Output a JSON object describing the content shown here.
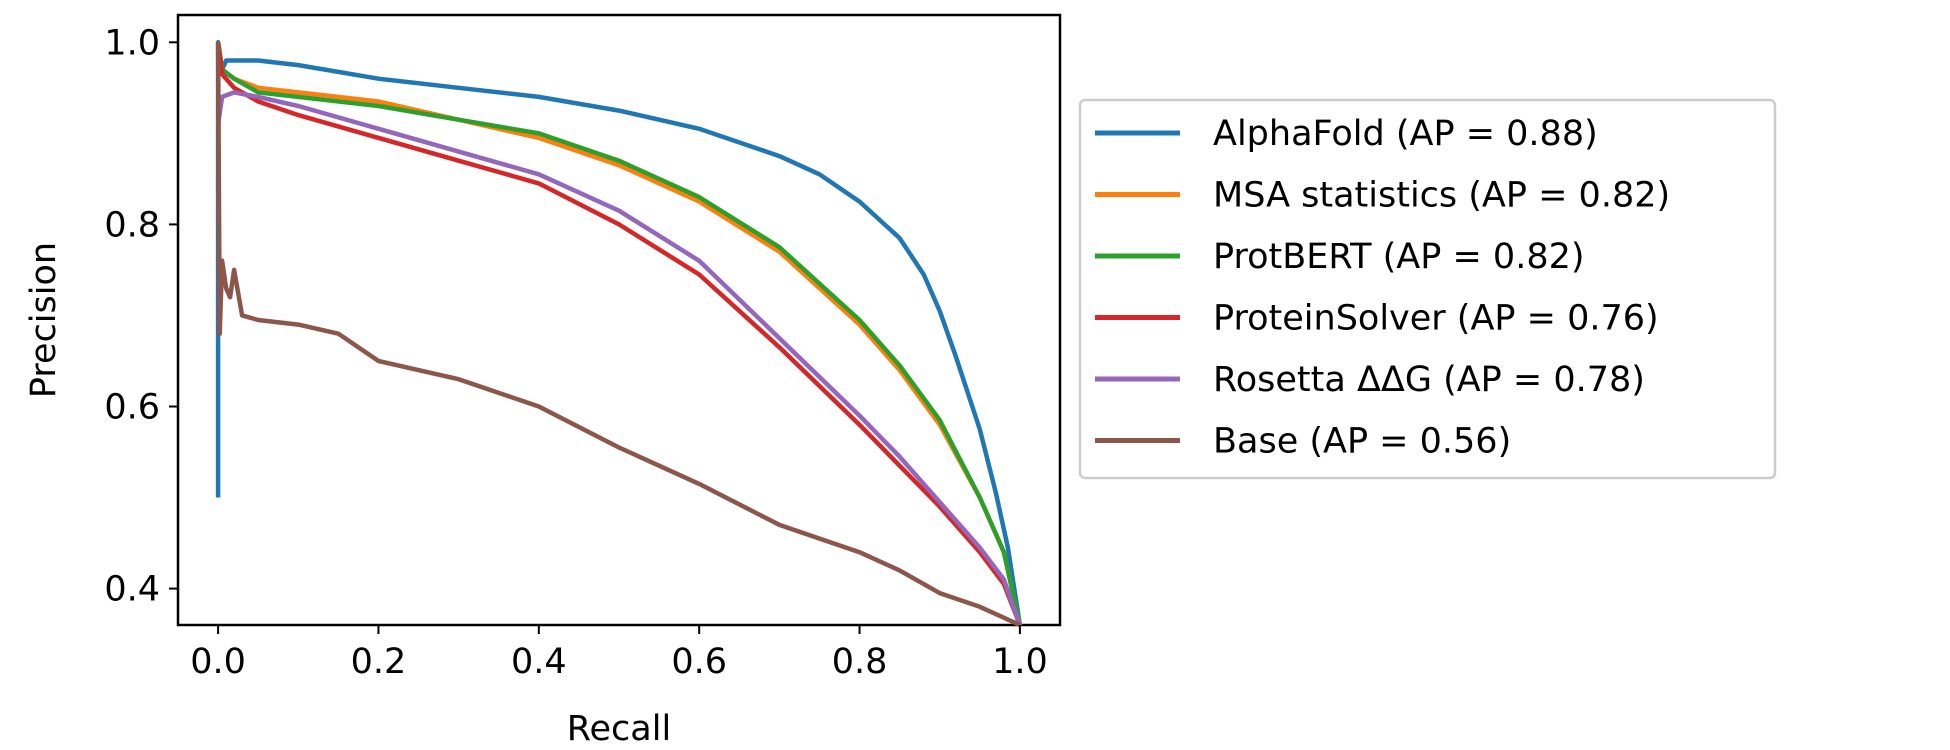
{
  "chart_data": {
    "type": "line",
    "title": "",
    "xlabel": "Recall",
    "ylabel": "Precision",
    "xlim": [
      -0.05,
      1.05
    ],
    "ylim": [
      0.36,
      1.03
    ],
    "x_ticks": [
      0.0,
      0.2,
      0.4,
      0.6,
      0.8,
      1.0
    ],
    "x_tick_labels": [
      "0.0",
      "0.2",
      "0.4",
      "0.6",
      "0.8",
      "1.0"
    ],
    "y_ticks": [
      0.4,
      0.6,
      0.8,
      1.0
    ],
    "y_tick_labels": [
      "0.4",
      "0.6",
      "0.8",
      "1.0"
    ],
    "grid": false,
    "legend_position": "outside-right",
    "series": [
      {
        "name": "AlphaFold (AP = 0.88)",
        "color": "#1f77b4",
        "points": [
          [
            0.0,
            0.5
          ],
          [
            0.0,
            1.0
          ],
          [
            0.005,
            0.97
          ],
          [
            0.01,
            0.98
          ],
          [
            0.02,
            0.98
          ],
          [
            0.05,
            0.98
          ],
          [
            0.1,
            0.975
          ],
          [
            0.2,
            0.96
          ],
          [
            0.3,
            0.95
          ],
          [
            0.4,
            0.94
          ],
          [
            0.5,
            0.925
          ],
          [
            0.6,
            0.905
          ],
          [
            0.7,
            0.875
          ],
          [
            0.75,
            0.855
          ],
          [
            0.8,
            0.825
          ],
          [
            0.85,
            0.785
          ],
          [
            0.88,
            0.745
          ],
          [
            0.9,
            0.705
          ],
          [
            0.92,
            0.655
          ],
          [
            0.95,
            0.575
          ],
          [
            0.97,
            0.505
          ],
          [
            0.985,
            0.445
          ],
          [
            1.0,
            0.36
          ]
        ]
      },
      {
        "name": "MSA statistics (AP = 0.82)",
        "color": "#ff7f0e",
        "points": [
          [
            0.0,
            1.0
          ],
          [
            0.005,
            0.97
          ],
          [
            0.02,
            0.96
          ],
          [
            0.05,
            0.95
          ],
          [
            0.1,
            0.945
          ],
          [
            0.2,
            0.935
          ],
          [
            0.3,
            0.915
          ],
          [
            0.4,
            0.895
          ],
          [
            0.5,
            0.865
          ],
          [
            0.6,
            0.825
          ],
          [
            0.7,
            0.77
          ],
          [
            0.8,
            0.69
          ],
          [
            0.85,
            0.64
          ],
          [
            0.9,
            0.58
          ],
          [
            0.95,
            0.5
          ],
          [
            0.98,
            0.44
          ],
          [
            1.0,
            0.36
          ]
        ]
      },
      {
        "name": "ProtBERT (AP = 0.82)",
        "color": "#2ca02c",
        "points": [
          [
            0.0,
            1.0
          ],
          [
            0.005,
            0.97
          ],
          [
            0.02,
            0.96
          ],
          [
            0.05,
            0.945
          ],
          [
            0.1,
            0.94
          ],
          [
            0.2,
            0.93
          ],
          [
            0.3,
            0.915
          ],
          [
            0.4,
            0.9
          ],
          [
            0.5,
            0.87
          ],
          [
            0.6,
            0.83
          ],
          [
            0.7,
            0.775
          ],
          [
            0.8,
            0.695
          ],
          [
            0.85,
            0.645
          ],
          [
            0.9,
            0.585
          ],
          [
            0.95,
            0.5
          ],
          [
            0.98,
            0.44
          ],
          [
            1.0,
            0.36
          ]
        ]
      },
      {
        "name": "ProteinSolver (AP = 0.76)",
        "color": "#d62728",
        "points": [
          [
            0.0,
            1.0
          ],
          [
            0.005,
            0.965
          ],
          [
            0.02,
            0.95
          ],
          [
            0.05,
            0.935
          ],
          [
            0.1,
            0.92
          ],
          [
            0.2,
            0.895
          ],
          [
            0.3,
            0.87
          ],
          [
            0.4,
            0.845
          ],
          [
            0.5,
            0.8
          ],
          [
            0.6,
            0.745
          ],
          [
            0.7,
            0.665
          ],
          [
            0.8,
            0.58
          ],
          [
            0.85,
            0.535
          ],
          [
            0.9,
            0.49
          ],
          [
            0.95,
            0.44
          ],
          [
            0.98,
            0.405
          ],
          [
            1.0,
            0.36
          ]
        ]
      },
      {
        "name": "Rosetta ΔΔG (AP = 0.78)",
        "color": "#9467bd",
        "points": [
          [
            0.0,
            0.91
          ],
          [
            0.005,
            0.94
          ],
          [
            0.02,
            0.945
          ],
          [
            0.05,
            0.94
          ],
          [
            0.1,
            0.93
          ],
          [
            0.2,
            0.905
          ],
          [
            0.3,
            0.88
          ],
          [
            0.4,
            0.855
          ],
          [
            0.5,
            0.815
          ],
          [
            0.6,
            0.76
          ],
          [
            0.7,
            0.675
          ],
          [
            0.8,
            0.59
          ],
          [
            0.85,
            0.545
          ],
          [
            0.9,
            0.495
          ],
          [
            0.95,
            0.445
          ],
          [
            0.98,
            0.41
          ],
          [
            1.0,
            0.36
          ]
        ]
      },
      {
        "name": "Base (AP = 0.56)",
        "color": "#8c564b",
        "points": [
          [
            0.0,
            1.0
          ],
          [
            0.002,
            0.68
          ],
          [
            0.005,
            0.76
          ],
          [
            0.01,
            0.73
          ],
          [
            0.015,
            0.72
          ],
          [
            0.02,
            0.75
          ],
          [
            0.03,
            0.7
          ],
          [
            0.05,
            0.695
          ],
          [
            0.1,
            0.69
          ],
          [
            0.15,
            0.68
          ],
          [
            0.2,
            0.65
          ],
          [
            0.3,
            0.63
          ],
          [
            0.4,
            0.6
          ],
          [
            0.5,
            0.555
          ],
          [
            0.6,
            0.515
          ],
          [
            0.7,
            0.47
          ],
          [
            0.8,
            0.44
          ],
          [
            0.85,
            0.42
          ],
          [
            0.9,
            0.395
          ],
          [
            0.95,
            0.38
          ],
          [
            1.0,
            0.36
          ]
        ]
      }
    ]
  }
}
